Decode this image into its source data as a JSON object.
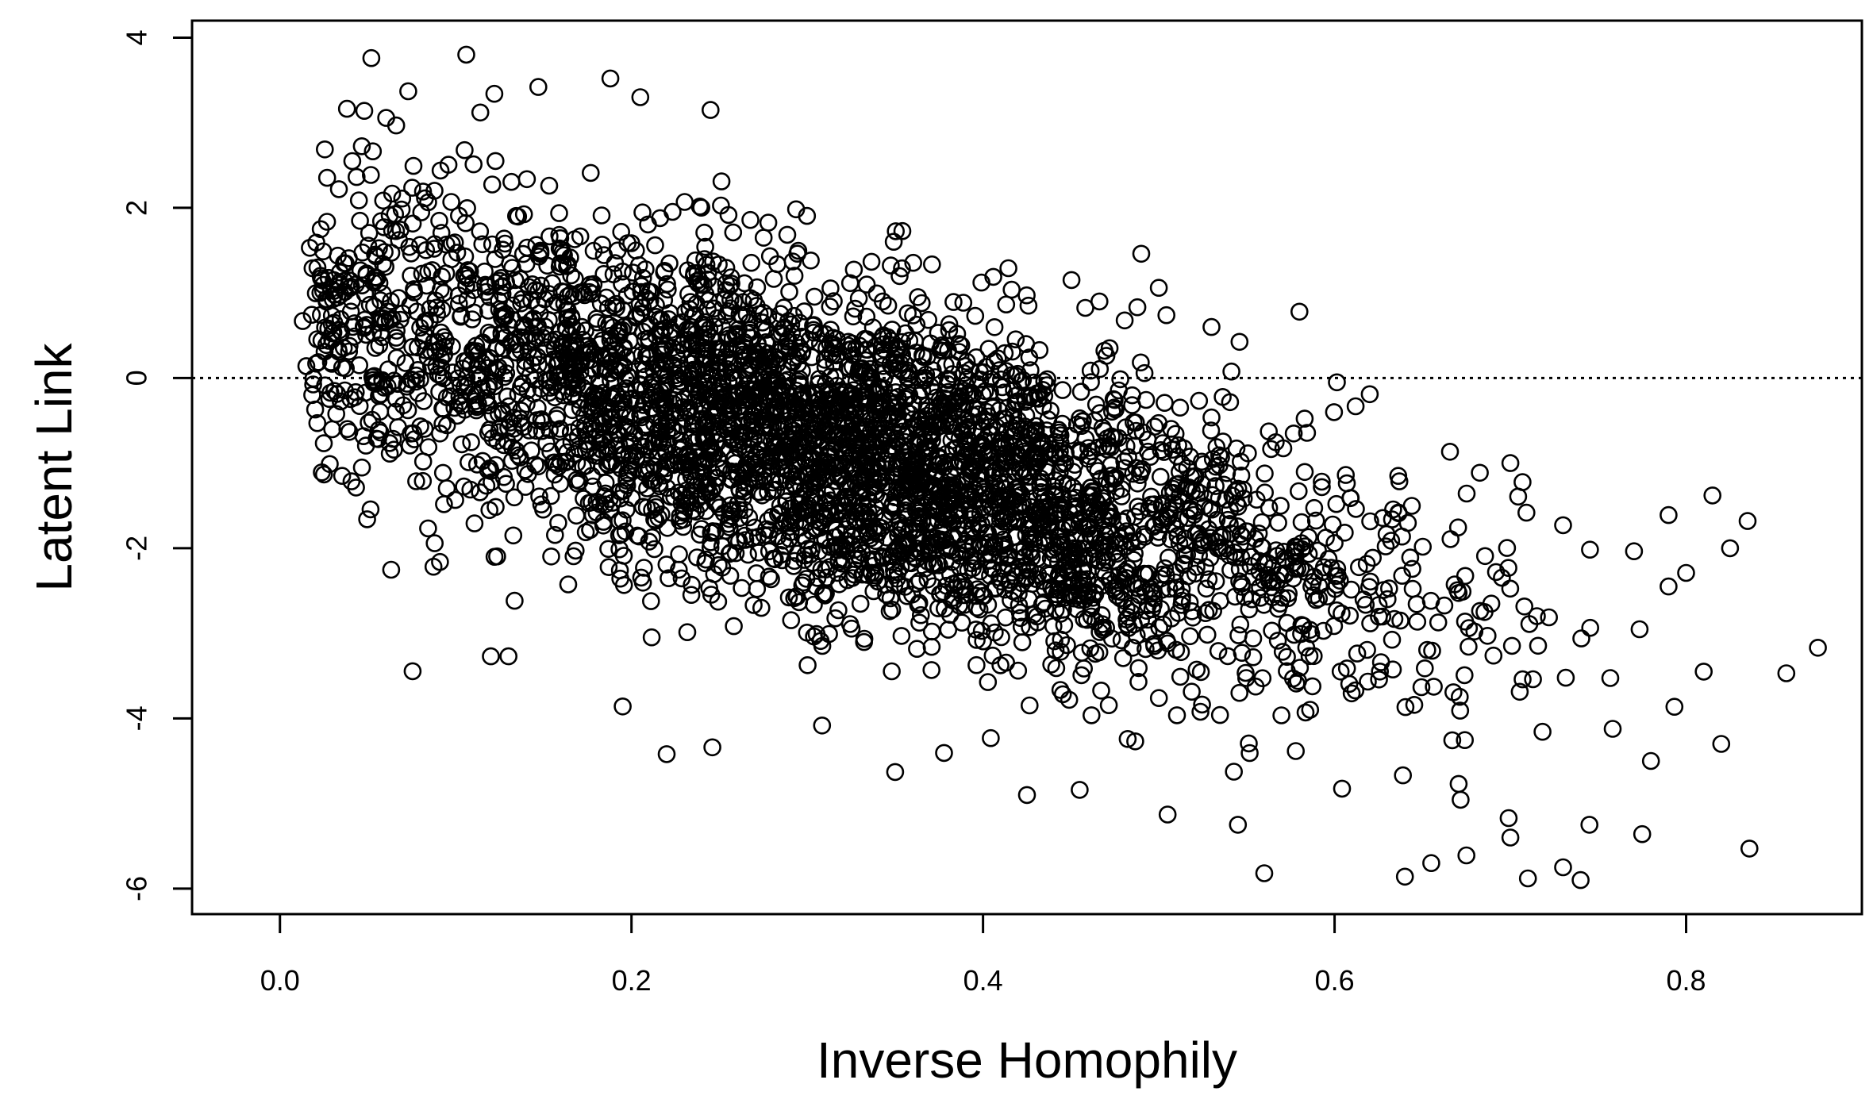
{
  "chart_data": {
    "type": "scatter",
    "title": "",
    "xlabel": "Inverse Homophily",
    "ylabel": "Latent Link",
    "xlim": [
      -0.05,
      0.9
    ],
    "ylim": [
      -6.3,
      4.2
    ],
    "xticks": [
      0.0,
      0.2,
      0.4,
      0.6,
      0.8
    ],
    "xtick_labels": [
      "0.0",
      "0.2",
      "0.4",
      "0.6",
      "0.8"
    ],
    "yticks": [
      4,
      2,
      0,
      -2,
      -4,
      -6
    ],
    "ytick_labels": [
      "4",
      "2",
      "0",
      "-2",
      "-4",
      "-6"
    ],
    "marker": "open-circle",
    "reference_line": {
      "y": 0,
      "style": "dotted"
    },
    "grid": false,
    "legend": "none",
    "trend": {
      "intercept": 0.9,
      "slope": -5.5,
      "noise_sd": 0.95
    },
    "points_note_x_range": [
      0.015,
      0.875
    ],
    "outliers": [
      {
        "x": 0.052,
        "y": 3.76
      },
      {
        "x": 0.106,
        "y": 3.8
      },
      {
        "x": 0.188,
        "y": 3.52
      },
      {
        "x": 0.147,
        "y": 3.42
      },
      {
        "x": 0.073,
        "y": 3.37
      },
      {
        "x": 0.205,
        "y": 3.3
      },
      {
        "x": 0.122,
        "y": 3.34
      },
      {
        "x": 0.114,
        "y": 3.12
      },
      {
        "x": 0.048,
        "y": 3.14
      },
      {
        "x": 0.245,
        "y": 3.15
      },
      {
        "x": 0.017,
        "y": 1.53
      },
      {
        "x": 0.013,
        "y": 0.67
      },
      {
        "x": 0.015,
        "y": 0.14
      },
      {
        "x": 0.12,
        "y": -3.27
      },
      {
        "x": 0.13,
        "y": -3.27
      },
      {
        "x": 0.195,
        "y": -3.86
      },
      {
        "x": 0.22,
        "y": -4.42
      },
      {
        "x": 0.246,
        "y": -4.34
      },
      {
        "x": 0.35,
        "y": -4.63
      },
      {
        "x": 0.49,
        "y": 1.46
      },
      {
        "x": 0.5,
        "y": 1.06
      },
      {
        "x": 0.58,
        "y": 0.78
      },
      {
        "x": 0.53,
        "y": 0.6
      },
      {
        "x": 0.62,
        "y": -0.19
      },
      {
        "x": 0.7,
        "y": -1.0
      },
      {
        "x": 0.73,
        "y": -1.73
      },
      {
        "x": 0.79,
        "y": -1.61
      },
      {
        "x": 0.815,
        "y": -1.38
      },
      {
        "x": 0.835,
        "y": -1.68
      },
      {
        "x": 0.825,
        "y": -2.0
      },
      {
        "x": 0.8,
        "y": -2.29
      },
      {
        "x": 0.79,
        "y": -2.45
      },
      {
        "x": 0.875,
        "y": -3.17
      },
      {
        "x": 0.857,
        "y": -3.47
      },
      {
        "x": 0.836,
        "y": -5.53
      },
      {
        "x": 0.81,
        "y": -3.45
      },
      {
        "x": 0.78,
        "y": -4.5
      },
      {
        "x": 0.82,
        "y": -4.3
      },
      {
        "x": 0.74,
        "y": -5.9
      },
      {
        "x": 0.71,
        "y": -5.88
      },
      {
        "x": 0.64,
        "y": -5.86
      },
      {
        "x": 0.56,
        "y": -5.82
      },
      {
        "x": 0.73,
        "y": -5.75
      },
      {
        "x": 0.675,
        "y": -5.61
      },
      {
        "x": 0.655,
        "y": -5.7
      },
      {
        "x": 0.7,
        "y": -5.4
      },
      {
        "x": 0.545,
        "y": -5.25
      },
      {
        "x": 0.505,
        "y": -5.13
      },
      {
        "x": 0.425,
        "y": -4.9
      },
      {
        "x": 0.455,
        "y": -4.84
      },
      {
        "x": 0.775,
        "y": -5.36
      },
      {
        "x": 0.745,
        "y": -5.25
      }
    ]
  }
}
